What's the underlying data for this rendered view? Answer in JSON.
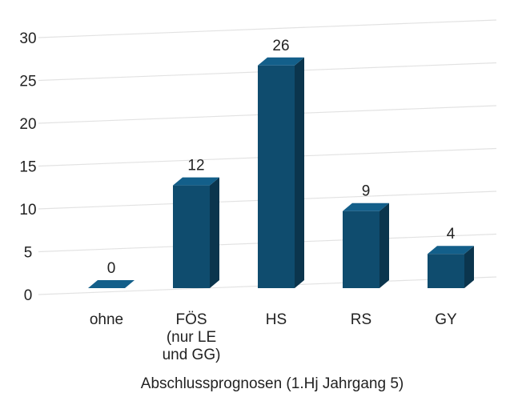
{
  "chart_data": {
    "type": "bar",
    "categories": [
      "ohne",
      "FÖS\n(nur LE\nund GG)",
      "HS",
      "RS",
      "GY"
    ],
    "values": [
      0,
      12,
      26,
      9,
      4
    ],
    "color": "#0f4c6e",
    "ylim": [
      0,
      30
    ],
    "yticks": [
      0,
      5,
      10,
      15,
      20,
      25,
      30
    ],
    "grid": true,
    "x_label": "Abschlussprognosen (1.Hj Jahrgang 5)"
  }
}
